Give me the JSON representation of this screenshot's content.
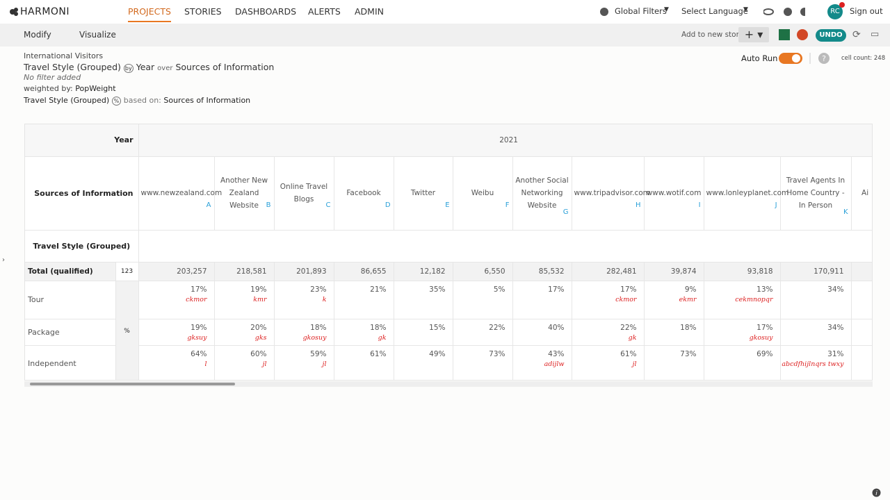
{
  "nav": {
    "brand": "HARMONI",
    "items": [
      "PROJECTS",
      "STORIES",
      "DASHBOARDS",
      "ALERTS",
      "ADMIN"
    ],
    "global_filters": "Global Filters",
    "language": "Select Language",
    "avatar": "RC",
    "sign_out": "Sign out"
  },
  "toolbar": {
    "modify": "Modify",
    "visualize": "Visualize",
    "add_story": "Add to new story",
    "undo": "UNDO"
  },
  "info": {
    "project": "International Visitors",
    "rows_var": "Travel Style (Grouped)",
    "by": "by",
    "cols_var": "Year",
    "over": "over",
    "over_var": "Sources of Information",
    "filter": "No filter added",
    "weighted_label": "weighted by:",
    "weight": "PopWeight",
    "pct_var": "Travel Style (Grouped)",
    "pct": "%",
    "based_label": "based on:",
    "based_var": "Sources of Information",
    "auto_run": "Auto Run",
    "cell_count": "cell count: 248"
  },
  "table": {
    "year_label": "Year",
    "year": "2021",
    "sources_label": "Sources of Information",
    "columns": [
      {
        "name": "www.newzealand.com",
        "letter": "A"
      },
      {
        "name": "Another New Zealand Website",
        "letter": "B"
      },
      {
        "name": "Online Travel Blogs",
        "letter": "C"
      },
      {
        "name": "Facebook",
        "letter": "D"
      },
      {
        "name": "Twitter",
        "letter": "E"
      },
      {
        "name": "Weibu",
        "letter": "F"
      },
      {
        "name": "Another Social Networking Website",
        "letter": "G"
      },
      {
        "name": "www.tripadvisor.com",
        "letter": "H"
      },
      {
        "name": "www.wotif.com",
        "letter": "I"
      },
      {
        "name": "www.lonleyplanet.com",
        "letter": "J"
      },
      {
        "name": "Travel Agents In Home Country - In Person",
        "letter": "K"
      },
      {
        "name": "Ai",
        "letter": null
      }
    ],
    "row_var": "Travel Style (Grouped)",
    "total_label": "Total (qualified)",
    "total_n": "123",
    "pct_label": "%",
    "totals": [
      "203,257",
      "218,581",
      "201,893",
      "86,655",
      "12,182",
      "6,550",
      "85,532",
      "282,481",
      "39,874",
      "93,818",
      "170,911"
    ],
    "rows": [
      {
        "label": "Tour",
        "values": [
          "17%",
          "19%",
          "23%",
          "21%",
          "35%",
          "5%",
          "17%",
          "17%",
          "9%",
          "13%",
          "34%"
        ],
        "sig": [
          "ckmor",
          "kmr",
          "k",
          null,
          null,
          null,
          null,
          "ckmor",
          "ekmr",
          "cekmnopqr",
          null
        ]
      },
      {
        "label": "Package",
        "values": [
          "19%",
          "20%",
          "18%",
          "18%",
          "15%",
          "22%",
          "40%",
          "22%",
          "18%",
          "17%",
          "34%"
        ],
        "sig": [
          "gksuy",
          "gks",
          "gkosuy",
          "gk",
          null,
          null,
          null,
          "gk",
          null,
          "gkosuy",
          null
        ]
      },
      {
        "label": "Independent",
        "values": [
          "64%",
          "60%",
          "59%",
          "61%",
          "49%",
          "73%",
          "43%",
          "61%",
          "73%",
          "69%",
          "31%"
        ],
        "sig": [
          "l",
          "jl",
          "jl",
          null,
          null,
          null,
          "adijlw",
          "jl",
          null,
          null,
          "abcdfhijlnqrs twxy"
        ]
      }
    ]
  }
}
